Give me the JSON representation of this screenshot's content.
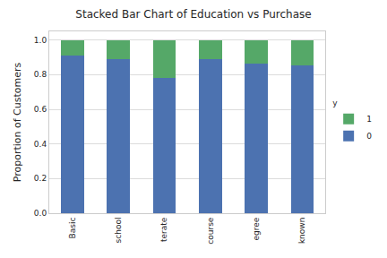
{
  "chart_data": {
    "type": "bar",
    "stacked": true,
    "title": "Stacked Bar Chart of Education vs Purchase",
    "y_label": "Proportion of Customers",
    "categories": [
      "Basic",
      "school",
      "terate",
      "course",
      "egree",
      "known"
    ],
    "series": [
      {
        "name": "0",
        "color": "#4c72b0",
        "values": [
          0.91,
          0.89,
          0.78,
          0.89,
          0.865,
          0.855
        ]
      },
      {
        "name": "1",
        "color": "#55a868",
        "values": [
          0.09,
          0.11,
          0.22,
          0.11,
          0.135,
          0.145
        ]
      }
    ],
    "legend_title": "y",
    "legend": "right",
    "ylim": [
      0,
      1.05
    ],
    "yticks": [
      {
        "value": 0,
        "label": "0.0"
      },
      {
        "value": 0.2,
        "label": "0.2"
      },
      {
        "value": 0.4,
        "label": "0.4"
      },
      {
        "value": 0.6,
        "label": "0.6"
      },
      {
        "value": 0.8,
        "label": "0.8"
      },
      {
        "value": 1,
        "label": "1.0"
      }
    ],
    "grid": true
  }
}
